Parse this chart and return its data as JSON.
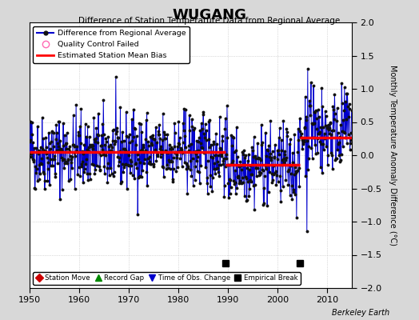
{
  "title": "WUGANG",
  "subtitle": "Difference of Station Temperature Data from Regional Average",
  "ylabel": "Monthly Temperature Anomaly Difference (°C)",
  "credit": "Berkeley Earth",
  "xlim": [
    1950,
    2015
  ],
  "ylim": [
    -2,
    2
  ],
  "yticks": [
    -2,
    -1.5,
    -1,
    -0.5,
    0,
    0.5,
    1,
    1.5,
    2
  ],
  "xticks": [
    1950,
    1960,
    1970,
    1980,
    1990,
    2000,
    2010
  ],
  "bias_segments": [
    {
      "x_start": 1950,
      "x_end": 1989.5,
      "bias": 0.05
    },
    {
      "x_start": 1989.5,
      "x_end": 2004.5,
      "bias": -0.15
    },
    {
      "x_start": 2004.5,
      "x_end": 2015,
      "bias": 0.27
    }
  ],
  "empirical_breaks": [
    1989.5,
    2004.5
  ],
  "empirical_break_y": -1.63,
  "background_color": "#d8d8d8",
  "plot_bg_color": "#ffffff",
  "line_color": "#0000cc",
  "bias_color": "#ff0000",
  "grid_color": "#bbbbbb",
  "seed": 42
}
